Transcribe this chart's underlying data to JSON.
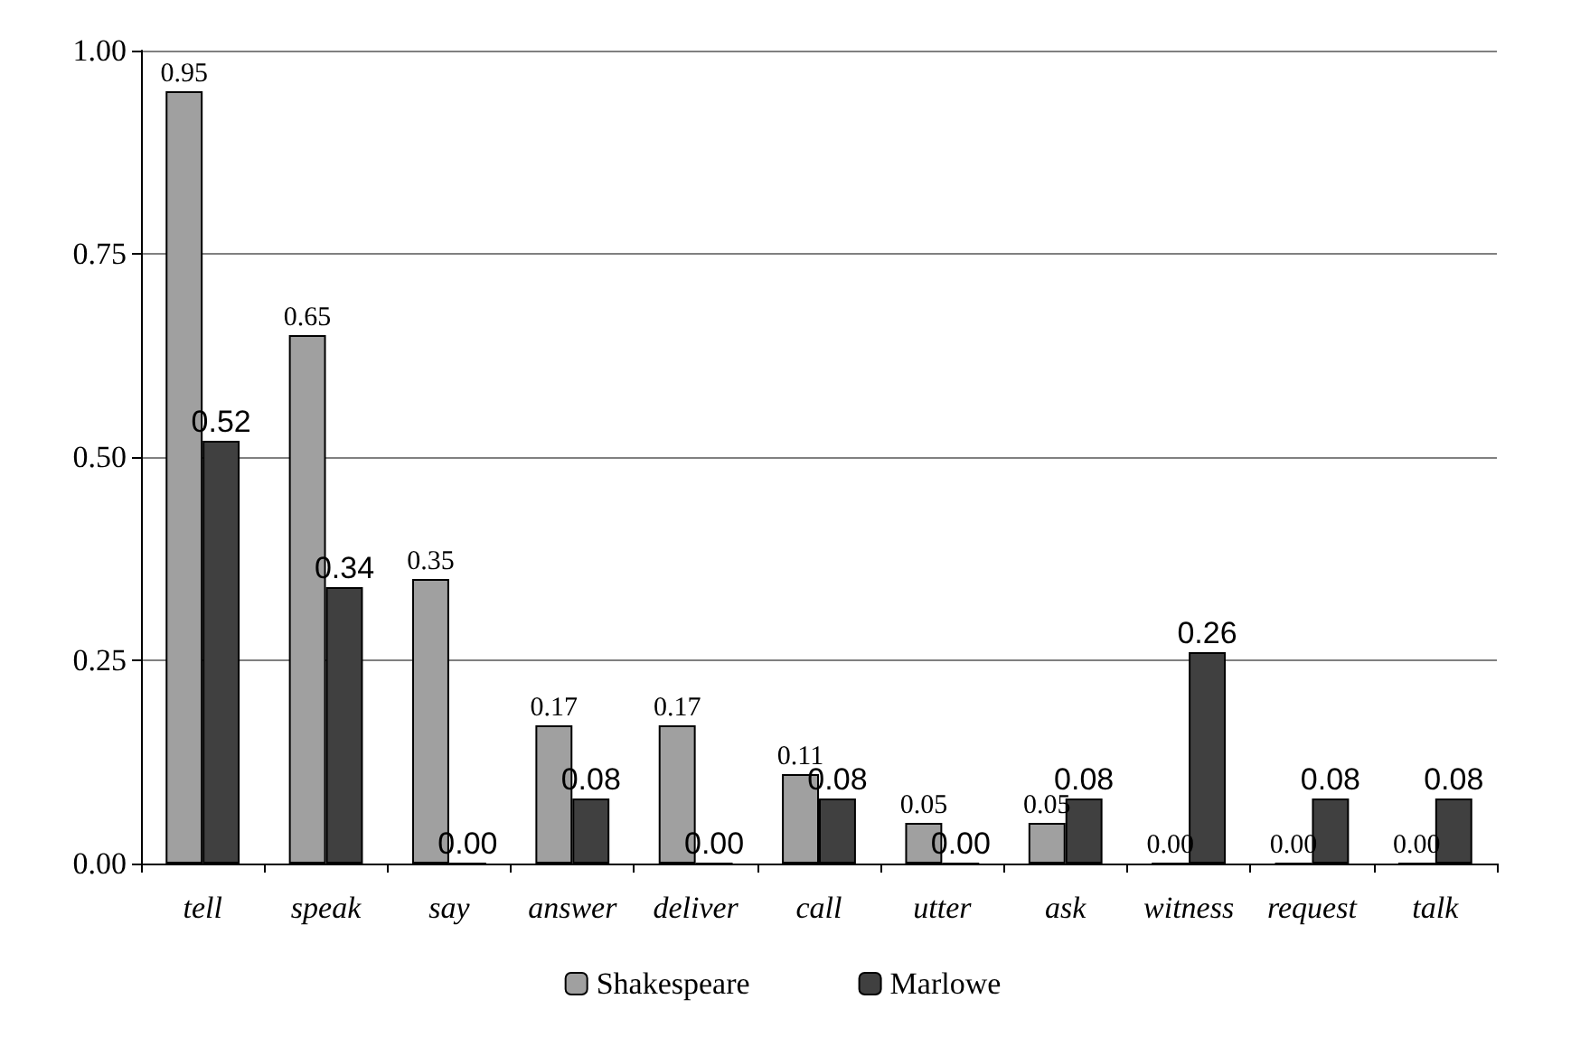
{
  "chart_data": {
    "type": "bar",
    "categories": [
      "tell",
      "speak",
      "say",
      "answer",
      "deliver",
      "call",
      "utter",
      "ask",
      "witness",
      "request",
      "talk"
    ],
    "series": [
      {
        "name": "Shakespeare",
        "color": "#a0a0a0",
        "values": [
          0.95,
          0.65,
          0.35,
          0.17,
          0.17,
          0.11,
          0.05,
          0.05,
          0.0,
          0.0,
          0.0
        ],
        "value_labels": [
          "0.95",
          "0.65",
          "0.35",
          "0.17",
          "0.17",
          "0.11",
          "0.05",
          "0.05",
          "0.00",
          "0.00",
          "0.00"
        ]
      },
      {
        "name": "Marlowe",
        "color": "#404040",
        "values": [
          0.52,
          0.34,
          0.0,
          0.08,
          0.0,
          0.08,
          0.0,
          0.08,
          0.26,
          0.08,
          0.08
        ],
        "value_labels": [
          "0.52",
          "0.34",
          "0.00",
          "0.08",
          "0.00",
          "0.08",
          "0.00",
          "0.08",
          "0.26",
          "0.08",
          "0.08"
        ]
      }
    ],
    "ylim": [
      0,
      1
    ],
    "yticks": [
      {
        "value": 0,
        "label": "0.00"
      },
      {
        "value": 0.25,
        "label": "0.25"
      },
      {
        "value": 0.5,
        "label": "0.50"
      },
      {
        "value": 0.75,
        "label": "0.75"
      },
      {
        "value": 1,
        "label": "1.00"
      }
    ],
    "grid": "y",
    "legend": "bottom"
  }
}
